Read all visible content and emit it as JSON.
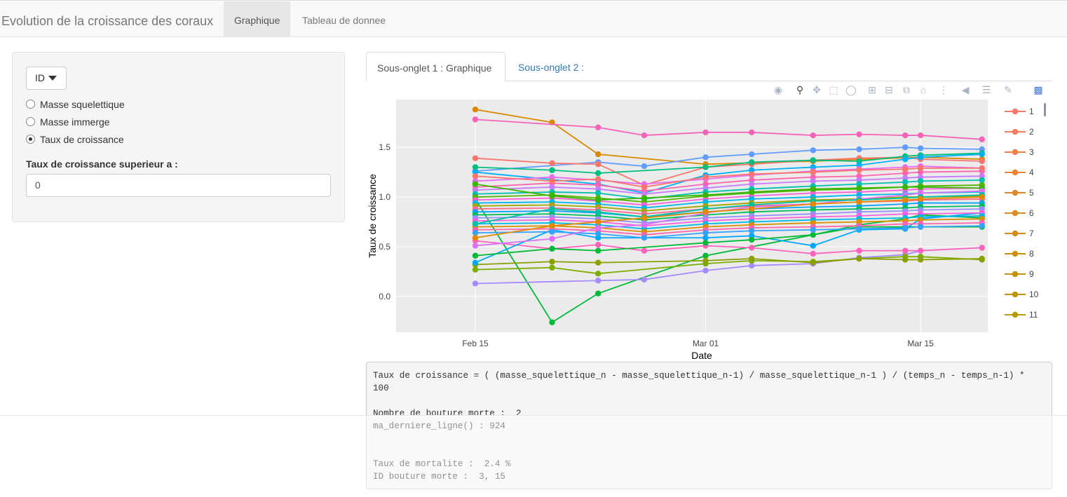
{
  "navbar": {
    "brand": "Evolution de la croissance des coraux",
    "tabs": [
      {
        "label": "Graphique",
        "active": true
      },
      {
        "label": "Tableau de donnee",
        "active": false
      }
    ]
  },
  "sidebar": {
    "dropdown_label": "ID",
    "radio_options": [
      {
        "label": "Masse squelettique",
        "checked": false
      },
      {
        "label": "Masse immerge",
        "checked": false
      },
      {
        "label": "Taux de croissance",
        "checked": true
      }
    ],
    "threshold_label": "Taux de croissance superieur a :",
    "threshold_value": "0"
  },
  "subtabs": [
    {
      "label": "Sous-onglet 1 : Graphique",
      "active": true
    },
    {
      "label": "Sous-onglet 2 :",
      "active": false
    }
  ],
  "modebar": {
    "icons": [
      "camera-icon",
      "zoom-icon",
      "pan-icon",
      "box-select-icon",
      "lasso-icon",
      "zoom-in-icon",
      "zoom-out-icon",
      "autoscale-icon",
      "reset-axes-icon",
      "spike-lines-icon",
      "hover-closest-icon",
      "hover-compare-icon",
      "edit-chart-icon",
      "plotly-logo-icon"
    ]
  },
  "chart_data": {
    "type": "line",
    "title": "",
    "xlabel": "Date",
    "ylabel": "Taux de croissance",
    "x_ticks": [
      "Feb 15",
      "Mar 01",
      "Mar 15"
    ],
    "y_ticks": [
      "0.0",
      "0.5",
      "1.0",
      "1.5"
    ],
    "ylim": [
      -0.36,
      1.98
    ],
    "grid": true,
    "legend_position": "right",
    "x": [
      "2024-02-15",
      "2024-02-20",
      "2024-02-23",
      "2024-02-26",
      "2024-03-01",
      "2024-03-04",
      "2024-03-08",
      "2024-03-11",
      "2024-03-14",
      "2024-03-15",
      "2024-03-19"
    ],
    "legend_entries": [
      {
        "name": "1",
        "color": "#F8766D"
      },
      {
        "name": "2",
        "color": "#F47C5A"
      },
      {
        "name": "3",
        "color": "#EF7F47"
      },
      {
        "name": "4",
        "color": "#E88336"
      },
      {
        "name": "5",
        "color": "#E2862A"
      },
      {
        "name": "6",
        "color": "#DB8A1F"
      },
      {
        "name": "7",
        "color": "#D48D13"
      },
      {
        "name": "8",
        "color": "#CD9008"
      },
      {
        "name": "9",
        "color": "#C69300"
      },
      {
        "name": "10",
        "color": "#BF9600"
      },
      {
        "name": "11",
        "color": "#B79900"
      }
    ],
    "series": [
      {
        "color": "#D98A00",
        "values": [
          1.88,
          1.75,
          1.43,
          null,
          1.33,
          null,
          1.36,
          null,
          null,
          1.4,
          1.38
        ]
      },
      {
        "color": "#F564B8",
        "values": [
          1.78,
          null,
          1.7,
          1.62,
          1.65,
          1.65,
          1.62,
          1.63,
          1.62,
          1.62,
          1.58
        ]
      },
      {
        "color": "#00BA38",
        "values": [
          0.98,
          -0.26,
          0.03,
          null,
          0.41,
          null,
          0.62,
          0.72,
          0.78,
          0.82,
          0.79
        ]
      },
      {
        "color": "#A68AFF",
        "values": [
          0.13,
          null,
          0.16,
          0.17,
          0.26,
          0.31,
          0.33,
          0.39,
          0.42,
          0.46,
          0.49
        ]
      },
      {
        "color": "#7CAE00",
        "values": [
          0.27,
          0.29,
          0.23,
          null,
          0.33,
          0.36,
          0.35,
          0.38,
          0.4,
          0.4,
          0.37
        ]
      },
      {
        "color": "#8BA000",
        "values": [
          0.32,
          0.35,
          0.34,
          null,
          0.36,
          0.38,
          0.34,
          0.38,
          0.37,
          0.37,
          0.38
        ]
      },
      {
        "color": "#FF62BC",
        "values": [
          0.56,
          0.48,
          0.52,
          0.46,
          0.51,
          0.49,
          0.43,
          0.46,
          0.46,
          0.46,
          0.49
        ]
      },
      {
        "color": "#00A9FF",
        "values": [
          0.34,
          0.67,
          0.59,
          null,
          0.59,
          0.61,
          0.51,
          0.67,
          0.68,
          0.78,
          0.84
        ]
      },
      {
        "color": "#00BA38",
        "values": [
          0.41,
          0.48,
          0.46,
          null,
          0.54,
          0.57,
          0.62,
          0.7,
          0.7,
          0.7,
          0.7
        ]
      },
      {
        "color": "#619CFF",
        "values": [
          1.26,
          null,
          1.35,
          1.31,
          1.4,
          1.43,
          1.47,
          1.48,
          1.5,
          1.49,
          1.48
        ]
      },
      {
        "color": "#F8766D",
        "values": [
          1.39,
          1.34,
          1.33,
          1.12,
          1.3,
          1.33,
          1.37,
          1.39,
          1.4,
          1.38,
          1.36
        ]
      },
      {
        "color": "#00BF7D",
        "values": [
          1.3,
          1.27,
          1.24,
          null,
          1.3,
          1.35,
          1.37,
          1.36,
          1.41,
          1.42,
          1.44
        ]
      },
      {
        "color": "#00B0F6",
        "values": [
          1.25,
          null,
          1.13,
          1.04,
          1.22,
          1.27,
          1.3,
          1.32,
          1.38,
          1.4,
          1.43
        ]
      },
      {
        "color": "#E76BF3",
        "values": [
          1.16,
          1.2,
          1.17,
          1.13,
          1.18,
          1.22,
          1.26,
          1.28,
          1.3,
          1.31,
          1.29
        ]
      },
      {
        "color": "#FF64B0",
        "values": [
          1.1,
          1.14,
          1.12,
          1.06,
          1.13,
          1.17,
          1.2,
          1.21,
          1.24,
          1.25,
          1.26
        ]
      },
      {
        "color": "#C77CFF",
        "values": [
          1.07,
          1.1,
          1.08,
          1.03,
          1.09,
          1.13,
          1.16,
          1.17,
          1.19,
          1.2,
          1.21
        ]
      },
      {
        "color": "#00C0AF",
        "values": [
          1.03,
          1.05,
          1.04,
          0.98,
          1.05,
          1.08,
          1.11,
          1.13,
          1.15,
          1.16,
          1.17
        ]
      },
      {
        "color": "#53B400",
        "values": [
          1.0,
          1.02,
          0.99,
          0.95,
          1.01,
          1.04,
          1.07,
          1.08,
          1.1,
          1.11,
          1.12
        ]
      },
      {
        "color": "#FB61D7",
        "values": [
          0.97,
          0.99,
          0.96,
          0.92,
          0.98,
          1.01,
          1.04,
          1.05,
          1.07,
          1.08,
          1.09
        ]
      },
      {
        "color": "#00B6EB",
        "values": [
          0.94,
          0.95,
          0.93,
          0.89,
          0.95,
          0.98,
          1.0,
          1.02,
          1.03,
          1.04,
          1.05
        ]
      },
      {
        "color": "#A3A500",
        "values": [
          0.91,
          0.92,
          0.9,
          0.86,
          0.91,
          0.94,
          0.97,
          0.98,
          1.0,
          1.0,
          1.01
        ]
      },
      {
        "color": "#FF6C91",
        "values": [
          0.88,
          0.89,
          0.87,
          0.83,
          0.88,
          0.91,
          0.93,
          0.95,
          0.96,
          0.97,
          0.98
        ]
      },
      {
        "color": "#06A4FF",
        "values": [
          0.85,
          0.86,
          0.84,
          0.8,
          0.85,
          0.88,
          0.9,
          0.91,
          0.93,
          0.94,
          0.94
        ]
      },
      {
        "color": "#00BD5C",
        "values": [
          0.82,
          0.83,
          0.81,
          0.77,
          0.82,
          0.85,
          0.87,
          0.88,
          0.89,
          0.9,
          0.91
        ]
      },
      {
        "color": "#9590FF",
        "values": [
          0.79,
          0.8,
          0.78,
          0.74,
          0.79,
          0.81,
          0.83,
          0.85,
          0.86,
          0.87,
          0.88
        ]
      },
      {
        "color": "#F962DD",
        "values": [
          0.76,
          0.77,
          0.75,
          0.71,
          0.76,
          0.78,
          0.8,
          0.81,
          0.83,
          0.83,
          0.84
        ]
      },
      {
        "color": "#00B8E7",
        "values": [
          0.73,
          0.74,
          0.72,
          0.68,
          0.73,
          0.75,
          0.77,
          0.78,
          0.79,
          0.8,
          0.81
        ]
      },
      {
        "color": "#D89000",
        "values": [
          0.7,
          0.71,
          0.69,
          0.65,
          0.7,
          0.72,
          0.74,
          0.75,
          0.76,
          0.77,
          0.78
        ]
      },
      {
        "color": "#FF65AC",
        "values": [
          0.67,
          0.68,
          0.66,
          0.62,
          0.67,
          0.69,
          0.7,
          0.71,
          0.73,
          0.73,
          0.74
        ]
      },
      {
        "color": "#35A2FF",
        "values": [
          0.64,
          0.65,
          0.63,
          0.59,
          0.64,
          0.66,
          0.67,
          0.68,
          0.69,
          0.7,
          0.71
        ]
      },
      {
        "color": "#39B600",
        "values": [
          1.13,
          1.01,
          0.97,
          0.99,
          1.02,
          1.05,
          1.08,
          1.09,
          1.1,
          1.1,
          1.09
        ]
      },
      {
        "color": "#DC71FA",
        "values": [
          0.51,
          0.58,
          0.69,
          0.72,
          0.84,
          0.9,
          0.93,
          0.98,
          1.02,
          1.04,
          1.06
        ]
      },
      {
        "color": "#F8766D",
        "values": [
          1.21,
          1.16,
          1.18,
          1.1,
          1.2,
          1.23,
          1.25,
          1.27,
          1.28,
          1.29,
          1.29
        ]
      },
      {
        "color": "#00C1A3",
        "values": [
          0.73,
          0.88,
          0.85,
          0.8,
          0.88,
          0.92,
          0.96,
          0.97,
          0.99,
          1.0,
          1.02
        ]
      },
      {
        "color": "#E38900",
        "values": [
          0.59,
          0.71,
          0.75,
          0.79,
          0.85,
          0.88,
          0.93,
          0.95,
          0.97,
          0.98,
          1.0
        ]
      }
    ]
  },
  "info": {
    "formula": "Taux de croissance = ( (masse_squelettique_n - masse_squelettique_n-1) / masse_squelettique_n-1 ) / (temps_n - temps_n-1) * 100",
    "dead_count": "Nombre de bouture morte :  2",
    "last_line": "ma_derniere_ligne() : 924",
    "mortality": "Taux de mortalite :  2.4 %",
    "dead_ids": "ID bouture morte :  3, 15"
  }
}
